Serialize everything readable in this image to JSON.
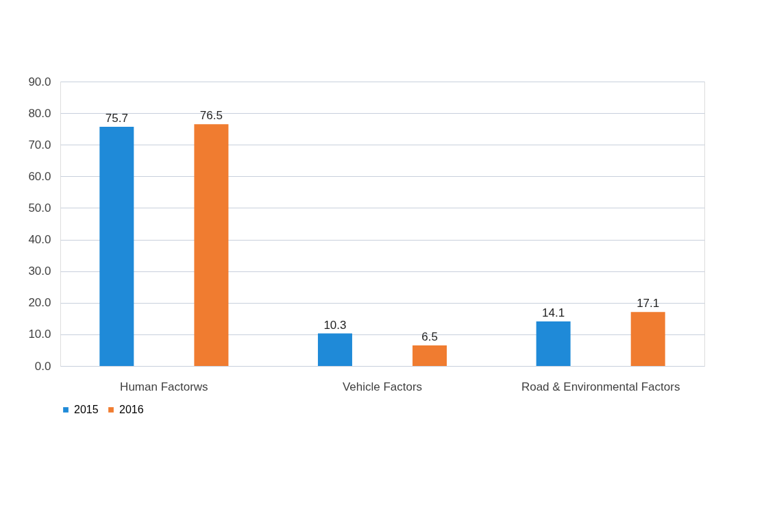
{
  "chart_data": {
    "type": "bar",
    "categories": [
      "Human Factorws",
      "Vehicle Factors",
      "Road & Environmental Factors"
    ],
    "series": [
      {
        "name": "2015",
        "color": "#1f8ad8",
        "values": [
          75.7,
          10.3,
          14.1
        ]
      },
      {
        "name": "2016",
        "color": "#f07c30",
        "values": [
          76.5,
          6.5,
          17.1
        ]
      }
    ],
    "ylim": [
      0,
      90
    ],
    "yticks": [
      {
        "value": 0,
        "label": "0.0"
      },
      {
        "value": 10,
        "label": "10.0"
      },
      {
        "value": 20,
        "label": "20.0"
      },
      {
        "value": 30,
        "label": "30.0"
      },
      {
        "value": 40,
        "label": "40.0"
      },
      {
        "value": 50,
        "label": "50.0"
      },
      {
        "value": 60,
        "label": "60.0"
      },
      {
        "value": 70,
        "label": "70.0"
      },
      {
        "value": 80,
        "label": "80.0"
      },
      {
        "value": 90,
        "label": "90.0"
      }
    ],
    "grid": "y",
    "legend": "bottom",
    "data_labels": true
  }
}
